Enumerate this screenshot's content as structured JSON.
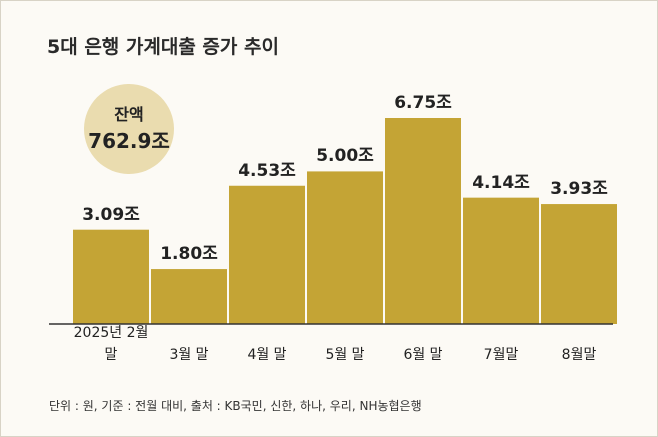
{
  "chart_data": {
    "type": "bar",
    "title": "5대 은행 가계대출 증가 추이",
    "categories": [
      "2025년\n2월 말",
      "3월 말",
      "4월 말",
      "5월 말",
      "6월 말",
      "7월말",
      "8월말"
    ],
    "values": [
      3.09,
      1.8,
      4.53,
      5.0,
      6.75,
      4.14,
      3.93
    ],
    "value_labels": [
      "3.09조",
      "1.80조",
      "4.53조",
      "5.00조",
      "6.75조",
      "4.14조",
      "3.93조"
    ],
    "color": "#c4a435",
    "annotation": {
      "label": "잔액",
      "value": "762.9조",
      "color": "#eadcaf"
    },
    "note": "단위 : 원, 기준 : 전월 대비, 출처 : KB국민, 신한, 하나, 우리, NH농협은행"
  }
}
